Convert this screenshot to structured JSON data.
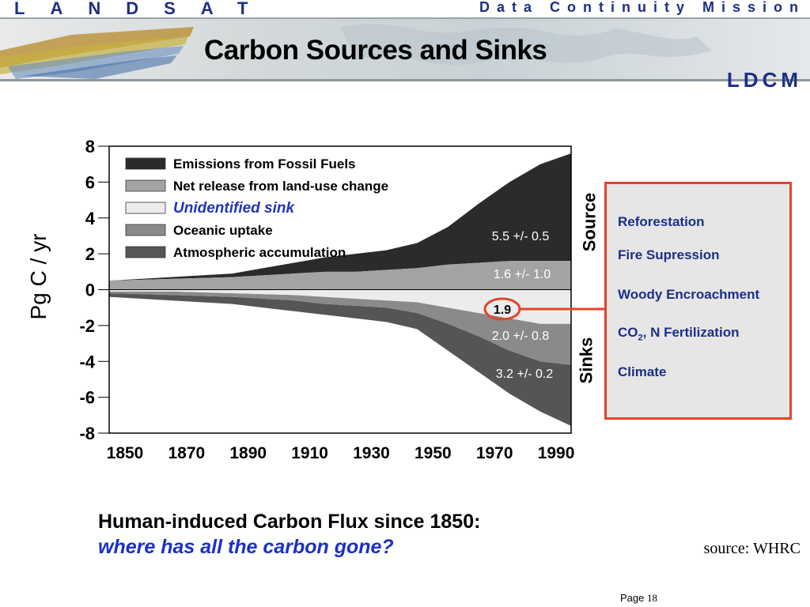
{
  "header": {
    "brand_left": "LANDSAT",
    "brand_right": "Data Continuity Mission",
    "title": "Carbon Sources and Sinks",
    "brand_mark": "LDCM"
  },
  "chart_data": {
    "type": "area",
    "ylabel": "Pg C / yr",
    "ylim": [
      -8,
      8
    ],
    "yticks": [
      "8",
      "6",
      "4",
      "2",
      "0",
      "-2",
      "-4",
      "-6",
      "-8"
    ],
    "xticks": [
      "1850",
      "1870",
      "1890",
      "1910",
      "1930",
      "1950",
      "1970",
      "1990"
    ],
    "xlim": [
      1850,
      2000
    ],
    "legend": [
      {
        "label": "Emissions from Fossil Fuels",
        "color": "#2b2b2b"
      },
      {
        "label": "Net release from land-use change",
        "color": "#a3a3a3"
      },
      {
        "label": "Unidentified sink",
        "color": "#ececec",
        "italic_blue": true
      },
      {
        "label": "Oceanic uptake",
        "color": "#8a8a8a"
      },
      {
        "label": "Atmospheric accumulation",
        "color": "#555555"
      }
    ],
    "legend_placement": "top-left",
    "x": [
      1850,
      1860,
      1870,
      1880,
      1890,
      1900,
      1910,
      1920,
      1930,
      1940,
      1950,
      1960,
      1970,
      1980,
      1990,
      2000
    ],
    "source_land_use": [
      0.5,
      0.55,
      0.6,
      0.65,
      0.7,
      0.8,
      0.9,
      1.0,
      1.0,
      1.1,
      1.2,
      1.4,
      1.5,
      1.6,
      1.6,
      1.6
    ],
    "source_total": [
      0.5,
      0.6,
      0.7,
      0.8,
      0.9,
      1.2,
      1.5,
      1.8,
      2.0,
      2.2,
      2.6,
      3.5,
      4.8,
      6.0,
      7.0,
      7.6
    ],
    "sink_unidentified": [
      0.1,
      0.1,
      0.1,
      0.15,
      0.2,
      0.25,
      0.3,
      0.4,
      0.5,
      0.6,
      0.7,
      1.0,
      1.3,
      1.6,
      1.9,
      1.9
    ],
    "sink_with_ocean": [
      0.2,
      0.25,
      0.3,
      0.35,
      0.4,
      0.5,
      0.6,
      0.8,
      0.9,
      1.0,
      1.3,
      1.9,
      2.6,
      3.4,
      4.0,
      4.2
    ],
    "sink_total": [
      0.4,
      0.5,
      0.6,
      0.7,
      0.8,
      1.0,
      1.2,
      1.4,
      1.6,
      1.8,
      2.2,
      3.4,
      4.6,
      5.8,
      6.8,
      7.6
    ],
    "annotations": {
      "fossil": "5.5 +/- 0.5",
      "land_use": "1.6 +/- 1.0",
      "unidentified": "1.9",
      "ocean": "2.0 +/- 0.8",
      "atmosphere": "3.2 +/- 0.2"
    },
    "side_labels": {
      "source": "Source",
      "sinks": "Sinks"
    }
  },
  "sink_factors": {
    "items": [
      "Reforestation",
      "Fire Supression",
      "Woody Encroachment",
      "CO",
      "Climate"
    ],
    "co2_sub": "2",
    "co2_rest": ", N Fertilization"
  },
  "captions": {
    "line1": "Human-induced Carbon Flux since 1850:",
    "line2": "where has all the carbon gone?",
    "source": "source: WHRC"
  },
  "footer": {
    "page_label": "Page",
    "page_number": "18"
  }
}
